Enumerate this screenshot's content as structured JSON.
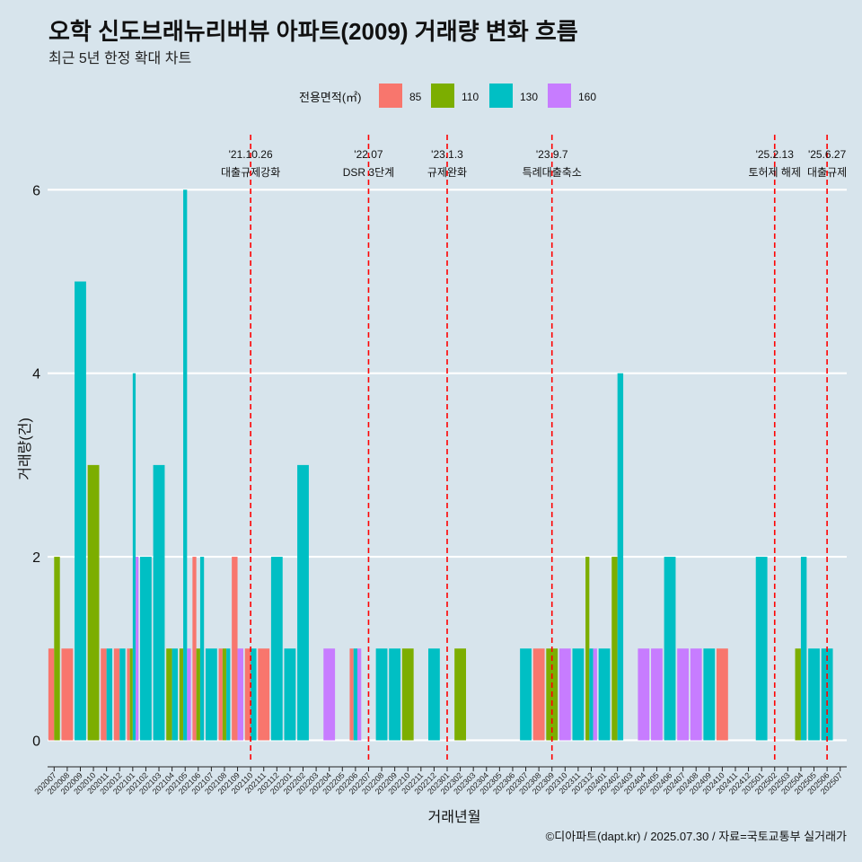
{
  "chart_data": {
    "type": "bar",
    "title": "오학 신도브래뉴리버뷰 아파트(2009) 거래량 변화 흐름",
    "subtitle": "최근 5년 한정 확대 차트",
    "xlabel": "거래년월",
    "ylabel": "거래량(건)",
    "caption": "©디아파트(dapt.kr) / 2025.07.30 / 자료=국토교통부 실거래가",
    "ylim": [
      -0.25,
      6.6
    ],
    "yticks": [
      0,
      2,
      4,
      6
    ],
    "legend": {
      "title": "전용면적(㎡)",
      "position": "top",
      "items": [
        {
          "label": "85",
          "color": "#f8766d"
        },
        {
          "label": "110",
          "color": "#7cae00"
        },
        {
          "label": "130",
          "color": "#00bfc4"
        },
        {
          "label": "160",
          "color": "#c77cff"
        }
      ]
    },
    "months": [
      "202007",
      "202008",
      "202009",
      "202010",
      "202011",
      "202012",
      "202101",
      "202102",
      "202103",
      "202104",
      "202105",
      "202106",
      "202107",
      "202108",
      "202109",
      "202110",
      "202111",
      "202112",
      "202201",
      "202202",
      "202203",
      "202204",
      "202205",
      "202206",
      "202207",
      "202208",
      "202209",
      "202210",
      "202211",
      "202212",
      "202301",
      "202302",
      "202303",
      "202304",
      "202305",
      "202306",
      "202307",
      "202308",
      "202309",
      "202310",
      "202311",
      "202312",
      "202401",
      "202402",
      "202403",
      "202404",
      "202405",
      "202406",
      "202407",
      "202408",
      "202409",
      "202410",
      "202411",
      "202412",
      "202501",
      "202502",
      "202503",
      "202504",
      "202505",
      "202506",
      "202507"
    ],
    "month_label_step": 1,
    "bars": [
      {
        "month": "202007",
        "series": [
          "85",
          "110"
        ],
        "values": [
          1,
          2
        ]
      },
      {
        "month": "202008",
        "series": [
          "85"
        ],
        "values": [
          1
        ]
      },
      {
        "month": "202009",
        "series": [
          "130"
        ],
        "values": [
          5
        ]
      },
      {
        "month": "202010",
        "series": [
          "110"
        ],
        "values": [
          3
        ]
      },
      {
        "month": "202011",
        "series": [
          "85",
          "130"
        ],
        "values": [
          1,
          1
        ]
      },
      {
        "month": "202012",
        "series": [
          "85",
          "130"
        ],
        "values": [
          1,
          1
        ]
      },
      {
        "month": "202101",
        "series": [
          "85",
          "110",
          "130",
          "160"
        ],
        "values": [
          1,
          1,
          4,
          2
        ]
      },
      {
        "month": "202102",
        "series": [
          "130"
        ],
        "values": [
          2
        ]
      },
      {
        "month": "202103",
        "series": [
          "130"
        ],
        "values": [
          3
        ]
      },
      {
        "month": "202104",
        "series": [
          "110",
          "130"
        ],
        "values": [
          1,
          1
        ]
      },
      {
        "month": "202105",
        "series": [
          "110",
          "130",
          "160"
        ],
        "values": [
          1,
          6,
          1
        ]
      },
      {
        "month": "202106",
        "series": [
          "85",
          "110",
          "130"
        ],
        "values": [
          2,
          1,
          2
        ]
      },
      {
        "month": "202107",
        "series": [
          "130"
        ],
        "values": [
          1
        ]
      },
      {
        "month": "202108",
        "series": [
          "85",
          "110",
          "130"
        ],
        "values": [
          1,
          1,
          1
        ]
      },
      {
        "month": "202109",
        "series": [
          "85",
          "160"
        ],
        "values": [
          2,
          1
        ]
      },
      {
        "month": "202110",
        "series": [
          "85",
          "130"
        ],
        "values": [
          1,
          1
        ]
      },
      {
        "month": "202111",
        "series": [
          "85"
        ],
        "values": [
          1
        ]
      },
      {
        "month": "202112",
        "series": [
          "130"
        ],
        "values": [
          2
        ]
      },
      {
        "month": "202201",
        "series": [
          "130"
        ],
        "values": [
          1
        ]
      },
      {
        "month": "202202",
        "series": [
          "130"
        ],
        "values": [
          3
        ]
      },
      {
        "month": "202204",
        "series": [
          "160"
        ],
        "values": [
          1
        ]
      },
      {
        "month": "202206",
        "series": [
          "85",
          "130",
          "160"
        ],
        "values": [
          1,
          1,
          1
        ]
      },
      {
        "month": "202208",
        "series": [
          "130"
        ],
        "values": [
          1
        ]
      },
      {
        "month": "202209",
        "series": [
          "130"
        ],
        "values": [
          1
        ]
      },
      {
        "month": "202210",
        "series": [
          "110"
        ],
        "values": [
          1
        ]
      },
      {
        "month": "202212",
        "series": [
          "130"
        ],
        "values": [
          1
        ]
      },
      {
        "month": "202302",
        "series": [
          "110"
        ],
        "values": [
          1
        ]
      },
      {
        "month": "202307",
        "series": [
          "130"
        ],
        "values": [
          1
        ]
      },
      {
        "month": "202308",
        "series": [
          "85"
        ],
        "values": [
          1
        ]
      },
      {
        "month": "202309",
        "series": [
          "110"
        ],
        "values": [
          1
        ]
      },
      {
        "month": "202310",
        "series": [
          "160"
        ],
        "values": [
          1
        ]
      },
      {
        "month": "202311",
        "series": [
          "130"
        ],
        "values": [
          1
        ]
      },
      {
        "month": "202312",
        "series": [
          "110",
          "130",
          "160"
        ],
        "values": [
          2,
          1,
          1
        ]
      },
      {
        "month": "202401",
        "series": [
          "130"
        ],
        "values": [
          1
        ]
      },
      {
        "month": "202402",
        "series": [
          "110",
          "130"
        ],
        "values": [
          2,
          4
        ]
      },
      {
        "month": "202404",
        "series": [
          "160"
        ],
        "values": [
          1
        ]
      },
      {
        "month": "202405",
        "series": [
          "160"
        ],
        "values": [
          1
        ]
      },
      {
        "month": "202406",
        "series": [
          "130"
        ],
        "values": [
          2
        ]
      },
      {
        "month": "202407",
        "series": [
          "160"
        ],
        "values": [
          1
        ]
      },
      {
        "month": "202408",
        "series": [
          "160"
        ],
        "values": [
          1
        ]
      },
      {
        "month": "202409",
        "series": [
          "130"
        ],
        "values": [
          1
        ]
      },
      {
        "month": "202410",
        "series": [
          "85"
        ],
        "values": [
          1
        ]
      },
      {
        "month": "202501",
        "series": [
          "130"
        ],
        "values": [
          2
        ]
      },
      {
        "month": "202504",
        "series": [
          "110",
          "130"
        ],
        "values": [
          1,
          2
        ]
      },
      {
        "month": "202505",
        "series": [
          "130"
        ],
        "values": [
          1
        ]
      },
      {
        "month": "202506",
        "series": [
          "130"
        ],
        "values": [
          1
        ]
      }
    ],
    "events": [
      {
        "month": "202110",
        "date": "'21.10.26",
        "label": "대출규제강화"
      },
      {
        "month": "202207",
        "date": "'22.07",
        "label": "DSR 3단계"
      },
      {
        "month": "202301",
        "date": "'23.1.3",
        "label": "규제완화"
      },
      {
        "month": "202309",
        "date": "'23.9.7",
        "label": "특례대출축소"
      },
      {
        "month": "202502",
        "date": "'25.2.13",
        "label": "토허제 해제"
      },
      {
        "month": "202506",
        "date": "'25.6.27",
        "label": "대출규제"
      }
    ]
  }
}
